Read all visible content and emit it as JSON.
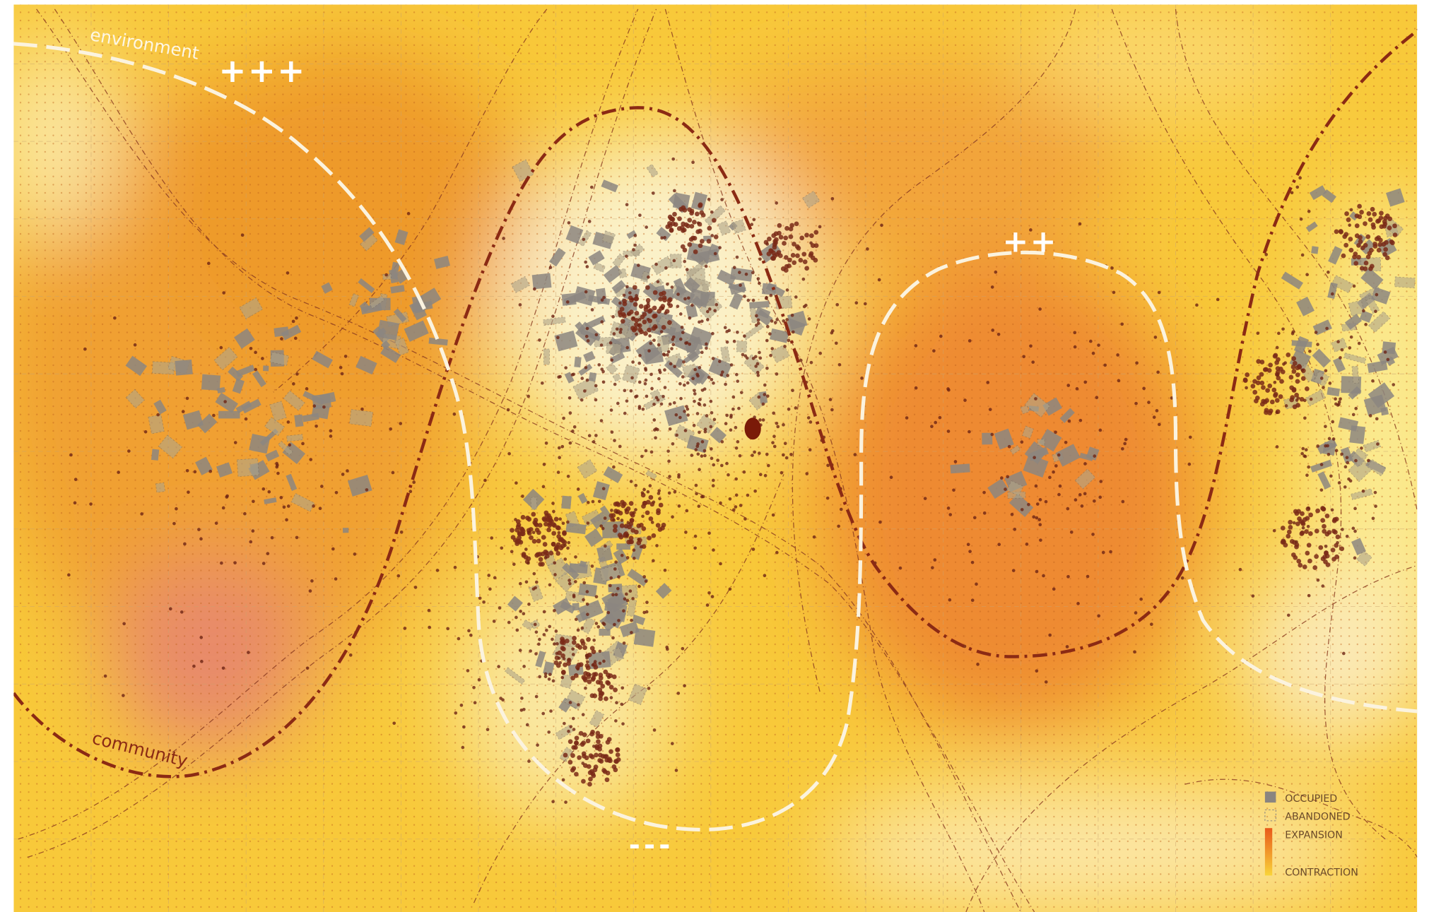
{
  "labels": {
    "environment": "environment",
    "community": "community",
    "high": "+++",
    "medium": "++",
    "low": "---"
  },
  "legend": {
    "items": [
      "OCCUPIED",
      "ABANDONED",
      "EXPANSION",
      "CONTRACTION"
    ]
  }
}
